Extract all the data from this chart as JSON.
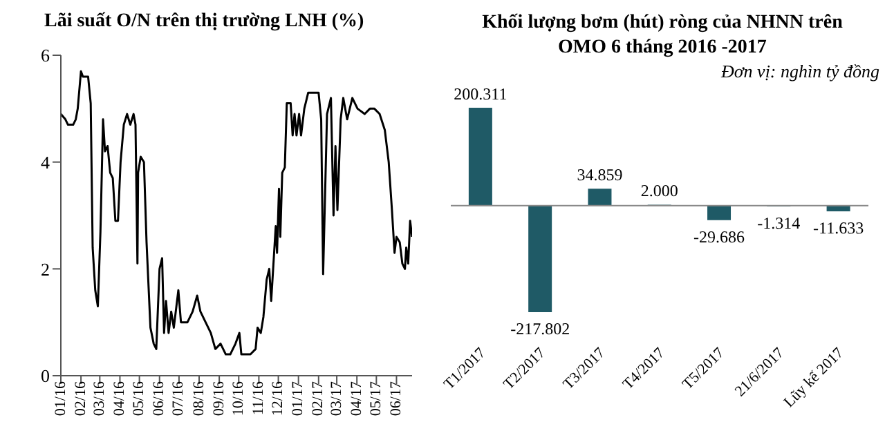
{
  "chart_data": [
    {
      "type": "line",
      "title": "Lãi suất O/N trên thị trường LNH (%)",
      "x": [
        "2016-01-01",
        "2016-01-08",
        "2016-01-12",
        "2016-01-20",
        "2016-01-24",
        "2016-01-27",
        "2016-02-01",
        "2016-02-04",
        "2016-02-12",
        "2016-02-16",
        "2016-02-19",
        "2016-02-23",
        "2016-02-27",
        "2016-03-02",
        "2016-03-06",
        "2016-03-09",
        "2016-03-13",
        "2016-03-17",
        "2016-03-21",
        "2016-03-25",
        "2016-03-29",
        "2016-04-02",
        "2016-04-07",
        "2016-04-12",
        "2016-04-17",
        "2016-04-22",
        "2016-04-25",
        "2016-04-28",
        "2016-04-29",
        "2016-05-03",
        "2016-05-08",
        "2016-05-12",
        "2016-05-18",
        "2016-05-23",
        "2016-05-27",
        "2016-06-01",
        "2016-06-05",
        "2016-06-08",
        "2016-06-11",
        "2016-06-15",
        "2016-06-19",
        "2016-06-23",
        "2016-06-27",
        "2016-06-30",
        "2016-07-04",
        "2016-07-14",
        "2016-07-22",
        "2016-07-29",
        "2016-08-03",
        "2016-08-11",
        "2016-08-19",
        "2016-08-26",
        "2016-09-03",
        "2016-09-11",
        "2016-09-18",
        "2016-09-26",
        "2016-10-02",
        "2016-10-05",
        "2016-10-11",
        "2016-10-19",
        "2016-10-27",
        "2016-10-30",
        "2016-11-04",
        "2016-11-08",
        "2016-11-13",
        "2016-11-17",
        "2016-11-20",
        "2016-11-23",
        "2016-11-27",
        "2016-11-29",
        "2016-12-02",
        "2016-12-04",
        "2016-12-07",
        "2016-12-11",
        "2016-12-14",
        "2016-12-20",
        "2016-12-23",
        "2016-12-26",
        "2016-12-29",
        "2017-01-02",
        "2017-01-05",
        "2017-01-10",
        "2017-01-16",
        "2017-02-01",
        "2017-02-05",
        "2017-02-08",
        "2017-02-14",
        "2017-02-20",
        "2017-02-24",
        "2017-02-27",
        "2017-03-02",
        "2017-03-07",
        "2017-03-11",
        "2017-03-17",
        "2017-03-25",
        "2017-04-02",
        "2017-04-13",
        "2017-04-21",
        "2017-04-28",
        "2017-05-06",
        "2017-05-14",
        "2017-05-20",
        "2017-05-25",
        "2017-05-29",
        "2017-06-01",
        "2017-06-06",
        "2017-06-10",
        "2017-06-14",
        "2017-06-16",
        "2017-06-19",
        "2017-06-22",
        "2017-06-25"
      ],
      "series": [
        {
          "color": "#000000",
          "values": [
            4.9,
            4.8,
            4.7,
            4.7,
            4.8,
            5.0,
            5.7,
            5.6,
            5.6,
            5.1,
            2.4,
            1.6,
            1.3,
            2.7,
            4.8,
            4.2,
            4.3,
            3.8,
            3.7,
            2.9,
            2.9,
            4.0,
            4.7,
            4.9,
            4.7,
            4.9,
            4.7,
            2.1,
            3.8,
            4.1,
            4.0,
            2.5,
            0.9,
            0.6,
            0.5,
            2.0,
            2.2,
            0.8,
            1.4,
            0.8,
            1.2,
            0.9,
            1.3,
            1.6,
            1.0,
            1.0,
            1.2,
            1.5,
            1.2,
            1.0,
            0.8,
            0.5,
            0.6,
            0.4,
            0.4,
            0.6,
            0.8,
            0.4,
            0.4,
            0.4,
            0.5,
            0.9,
            0.8,
            1.1,
            1.8,
            2.0,
            1.4,
            2.0,
            2.8,
            2.3,
            3.5,
            2.6,
            3.8,
            3.9,
            5.1,
            5.1,
            4.5,
            4.9,
            4.5,
            4.9,
            4.5,
            5.0,
            5.3,
            5.3,
            4.8,
            1.9,
            4.9,
            5.2,
            3.0,
            4.3,
            3.1,
            4.8,
            5.2,
            4.8,
            5.2,
            5.0,
            4.9,
            5.0,
            5.0,
            4.9,
            4.6,
            4.0,
            3.1,
            2.3,
            2.6,
            2.5,
            2.1,
            2.0,
            2.4,
            2.1,
            2.9,
            2.6
          ]
        }
      ],
      "xlim": [
        "2016-01-01",
        "2017-06-25"
      ],
      "xticks": [
        {
          "value": "2016-01-01",
          "label": "01/16"
        },
        {
          "value": "2016-02-01",
          "label": "02/16"
        },
        {
          "value": "2016-03-01",
          "label": "03/16"
        },
        {
          "value": "2016-04-01",
          "label": "04/16"
        },
        {
          "value": "2016-05-01",
          "label": "05/16"
        },
        {
          "value": "2016-06-01",
          "label": "06/16"
        },
        {
          "value": "2016-07-01",
          "label": "07/16"
        },
        {
          "value": "2016-08-01",
          "label": "08/16"
        },
        {
          "value": "2016-09-01",
          "label": "09/16"
        },
        {
          "value": "2016-10-01",
          "label": "10/16"
        },
        {
          "value": "2016-11-01",
          "label": "11/16"
        },
        {
          "value": "2016-12-01",
          "label": "12/16"
        },
        {
          "value": "2017-01-01",
          "label": "01/17"
        },
        {
          "value": "2017-02-01",
          "label": "02/17"
        },
        {
          "value": "2017-03-01",
          "label": "03/17"
        },
        {
          "value": "2017-04-01",
          "label": "04/17"
        },
        {
          "value": "2017-05-01",
          "label": "05/17"
        },
        {
          "value": "2017-06-01",
          "label": "06/17"
        }
      ],
      "ylim": [
        0,
        6
      ],
      "yticks": [
        0,
        2,
        4,
        6
      ],
      "grid": false,
      "legend": false,
      "marker": "none",
      "line_style": "solid"
    },
    {
      "type": "bar",
      "title": "Khối lượng bơm (hút) ròng của NHNN trên OMO 6 tháng 2016 -2017",
      "subtitle": "Đơn vị: nghìn tỷ đồng",
      "categories": [
        "T1/2017",
        "T2/2017",
        "T3/2017",
        "T4/2017",
        "T5/2017",
        "21/6/2017",
        "Lũy kế 2017"
      ],
      "values": [
        200.311,
        -217.802,
        34.859,
        2.0,
        -29.686,
        -1.314,
        -11.633
      ],
      "value_labels": [
        "200.311",
        "-217.802",
        "34.859",
        "2.000",
        "-29.686",
        "-1.314",
        "-11.633"
      ],
      "color": "#1f5a66",
      "grid": false,
      "legend": false
    }
  ]
}
